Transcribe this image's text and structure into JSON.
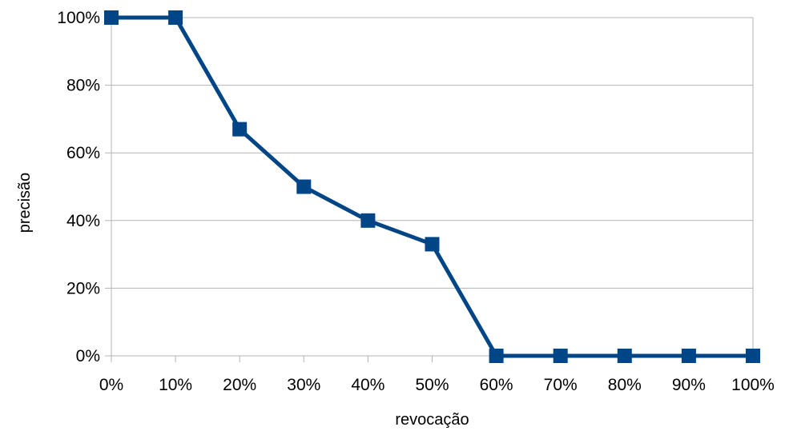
{
  "chart_data": {
    "type": "line",
    "title": "",
    "xlabel": "revocação",
    "ylabel": "precisão",
    "x": [
      "0%",
      "10%",
      "20%",
      "30%",
      "40%",
      "50%",
      "60%",
      "70%",
      "80%",
      "90%",
      "100%"
    ],
    "series": [
      {
        "values": [
          100,
          100,
          67,
          50,
          40,
          33,
          0,
          0,
          0,
          0,
          0
        ],
        "color": "#004586",
        "marker": "square"
      }
    ],
    "yticks": [
      "0%",
      "20%",
      "40%",
      "60%",
      "80%",
      "100%"
    ],
    "ylim": [
      0,
      100
    ],
    "grid": "horizontal",
    "legend": "none"
  }
}
